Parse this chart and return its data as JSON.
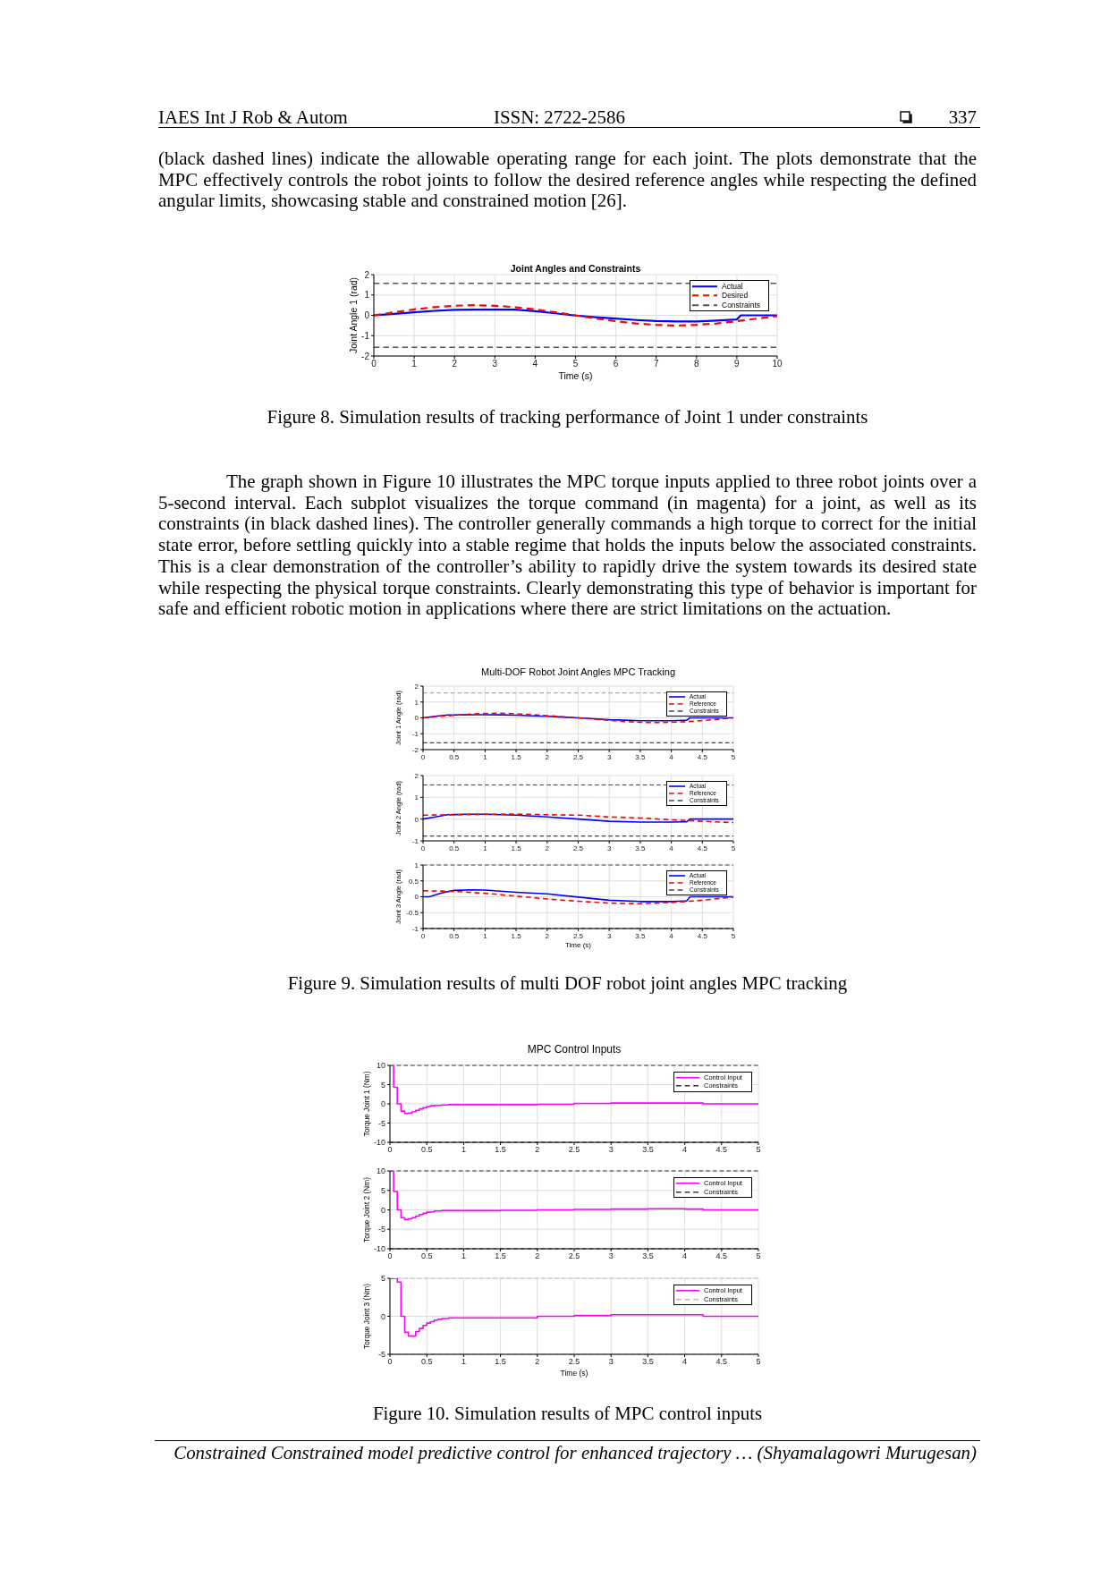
{
  "chart_data": [
    {
      "type": "other",
      "annotations": [
        "IAES Int J Rob & Autom",
        "ISSN: 2722-2586",
        "337"
      ]
    },
    {
      "type": "other",
      "annotations": [
        "(black dashed lines) indicate the allowable operating range for each joint. The plots demonstrate that the MPC effectively controls the robot joints to follow the desired reference angles while respecting the defined angular limits, showcasing stable and constrained motion [26]."
      ]
    },
    {
      "type": "line",
      "title": "Joint Angles and Constraints",
      "xlabel": "Time (s)",
      "ylabel": "Joint Angle 1 (rad)",
      "xlim": [
        0,
        10
      ],
      "xticks": [
        0,
        1,
        2,
        3,
        4,
        5,
        6,
        7,
        8,
        9,
        10
      ],
      "ylim": [
        -2,
        2
      ],
      "yticks": [
        -2,
        -1,
        0,
        1,
        2
      ],
      "grid": true,
      "legend": "top right",
      "series": [
        {
          "name": "Actual",
          "color": "#0000ff",
          "line_style": "solid",
          "x": [
            0,
            0.5,
            1,
            1.5,
            2,
            2.5,
            3,
            3.5,
            4,
            4.5,
            5,
            5.5,
            6,
            6.5,
            7,
            7.5,
            8,
            8.5,
            9,
            9.1,
            9.5,
            10
          ],
          "values": [
            0,
            0.07,
            0.15,
            0.22,
            0.27,
            0.28,
            0.28,
            0.28,
            0.2,
            0.1,
            -0.01,
            -0.09,
            -0.16,
            -0.23,
            -0.28,
            -0.3,
            -0.3,
            -0.26,
            -0.2,
            0,
            0,
            0
          ]
        },
        {
          "name": "Desired",
          "color": "#ff0000",
          "line_style": "dashed",
          "x": [
            0,
            0.5,
            1,
            1.5,
            2,
            2.5,
            3,
            3.5,
            4,
            4.5,
            5,
            5.5,
            6,
            6.5,
            7,
            7.5,
            8,
            8.5,
            9,
            9.5,
            10
          ],
          "values": [
            0,
            0.15,
            0.29,
            0.4,
            0.47,
            0.5,
            0.47,
            0.4,
            0.29,
            0.15,
            0,
            -0.15,
            -0.29,
            -0.4,
            -0.47,
            -0.5,
            -0.47,
            -0.4,
            -0.29,
            -0.16,
            -0.04
          ]
        }
      ],
      "ref_lines": [
        {
          "axis": "y",
          "value": 1.57,
          "label": "Constraints",
          "color": "#555555",
          "line_style": "dashed"
        },
        {
          "axis": "y",
          "value": -1.57,
          "color": "#555555",
          "line_style": "dashed"
        }
      ],
      "annotations": [
        "Figure 8. Simulation results of tracking performance of Joint 1 under constraints"
      ]
    },
    {
      "type": "other",
      "annotations": [
        "The graph shown in Figure 10 illustrates the MPC torque inputs applied to three robot joints over a 5-second interval. Each subplot visualizes the torque command (in magenta) for a joint, as well as its constraints (in black dashed lines). The controller generally commands a high torque to correct for the initial state error, before settling quickly into a stable regime that holds the inputs below the associated constraints. This is a clear demonstration of the controller’s ability to rapidly drive the system towards its desired state while respecting the physical torque constraints. Clearly demonstrating this type of behavior is important for safe and efficient robotic motion in applications where there are strict limitations on the actuation."
      ]
    },
    {
      "type": "line",
      "title": "Multi-DOF Robot Joint Angles MPC Tracking",
      "ylabel": "Joint 1 Angle (rad)",
      "xlim": [
        0,
        5
      ],
      "xticks": [
        0,
        0.5,
        1,
        1.5,
        2,
        2.5,
        3,
        3.5,
        4,
        4.5,
        5
      ],
      "ylim": [
        -2,
        2
      ],
      "yticks": [
        -2,
        -1,
        0,
        1,
        2
      ],
      "grid": true,
      "legend": "top right",
      "series": [
        {
          "name": "Actual",
          "color": "#0000ff",
          "line_style": "solid",
          "x": [
            0,
            0.2,
            0.4,
            0.6,
            0.8,
            1,
            1.25,
            1.5,
            1.75,
            2,
            2.25,
            2.5,
            2.75,
            3,
            3.25,
            3.5,
            3.75,
            4,
            4.25,
            4.3,
            4.65,
            5
          ],
          "values": [
            0,
            0.1,
            0.18,
            0.19,
            0.2,
            0.2,
            0.19,
            0.17,
            0.13,
            0.1,
            0.05,
            0,
            -0.06,
            -0.12,
            -0.15,
            -0.18,
            -0.18,
            -0.18,
            -0.15,
            0,
            0,
            0
          ]
        },
        {
          "name": "Reference",
          "color": "#ff0000",
          "line_style": "dashed",
          "x": [
            0,
            0.25,
            0.5,
            0.75,
            1,
            1.25,
            1.5,
            1.75,
            2,
            2.25,
            2.5,
            2.75,
            3,
            3.25,
            3.5,
            3.75,
            4,
            4.25,
            4.5,
            4.75,
            5
          ],
          "values": [
            0,
            0.09,
            0.16,
            0.23,
            0.28,
            0.29,
            0.26,
            0.2,
            0.14,
            0.07,
            0,
            -0.08,
            -0.16,
            -0.23,
            -0.28,
            -0.3,
            -0.28,
            -0.24,
            -0.17,
            -0.09,
            0
          ]
        }
      ],
      "ref_lines": [
        {
          "axis": "y",
          "value": 1.57,
          "color": "#aaaaaa",
          "line_style": "dashed"
        },
        {
          "axis": "y",
          "value": -1.57,
          "label": "Constraints",
          "color": "#444444",
          "line_style": "dashed"
        }
      ]
    },
    {
      "type": "line",
      "ylabel": "Joint 2 Angle (rad)",
      "xlim": [
        0,
        5
      ],
      "xticks": [
        0,
        0.5,
        1,
        1.5,
        2,
        2.5,
        3,
        3.5,
        4,
        4.5,
        5
      ],
      "ylim": [
        -1,
        2
      ],
      "yticks": [
        -1,
        0,
        1,
        2
      ],
      "grid": true,
      "legend": "top right",
      "series": [
        {
          "name": "Actual",
          "color": "#0000ff",
          "line_style": "solid",
          "x": [
            0,
            0.2,
            0.4,
            0.7,
            1,
            1.5,
            2,
            2.5,
            3,
            3.5,
            4,
            4.25,
            4.3,
            5
          ],
          "values": [
            0,
            0.1,
            0.2,
            0.22,
            0.22,
            0.18,
            0.1,
            0,
            -0.1,
            -0.14,
            -0.14,
            -0.12,
            0,
            0
          ]
        },
        {
          "name": "Reference",
          "color": "#ff0000",
          "line_style": "dashed",
          "x": [
            0,
            0.5,
            1,
            1.5,
            2,
            2.5,
            3,
            3.5,
            4,
            4.5,
            5
          ],
          "values": [
            0.18,
            0.2,
            0.22,
            0.23,
            0.2,
            0.18,
            0.1,
            0.05,
            -0.03,
            -0.1,
            -0.16
          ]
        }
      ],
      "ref_lines": [
        {
          "axis": "y",
          "value": 1.57,
          "label": "Constraints",
          "color": "#444444",
          "line_style": "dashed"
        },
        {
          "axis": "y",
          "value": -0.78,
          "color": "#444444",
          "line_style": "dashed"
        }
      ]
    },
    {
      "type": "line",
      "xlabel": "Time (s)",
      "ylabel": "Joint 3 Angle (rad)",
      "xlim": [
        0,
        5
      ],
      "xticks": [
        0,
        0.5,
        1,
        1.5,
        2,
        2.5,
        3,
        3.5,
        4,
        4.5,
        5
      ],
      "ylim": [
        -1,
        1
      ],
      "yticks": [
        -1,
        -0.5,
        0,
        0.5,
        1
      ],
      "grid": true,
      "legend": "top right",
      "series": [
        {
          "name": "Actual",
          "color": "#0000ff",
          "line_style": "solid",
          "x": [
            0,
            0.1,
            0.3,
            0.5,
            0.8,
            1,
            1.5,
            2,
            2.5,
            3,
            3.5,
            4,
            4.25,
            4.3,
            5
          ],
          "values": [
            0,
            0,
            0.12,
            0.2,
            0.22,
            0.21,
            0.14,
            0.09,
            -0.01,
            -0.11,
            -0.15,
            -0.15,
            -0.13,
            0,
            0
          ]
        },
        {
          "name": "Reference",
          "color": "#ff0000",
          "line_style": "dashed",
          "x": [
            0,
            0.5,
            1,
            1.5,
            2,
            2.5,
            3,
            3.5,
            4,
            4.3,
            4.5,
            5
          ],
          "values": [
            0.19,
            0.17,
            0.11,
            0.02,
            -0.07,
            -0.14,
            -0.2,
            -0.22,
            -0.18,
            -0.14,
            -0.11,
            -0.01
          ]
        }
      ],
      "ref_lines": [
        {
          "axis": "y",
          "value": 1,
          "label": "Constraints",
          "color": "#444444",
          "line_style": "dashed"
        },
        {
          "axis": "y",
          "value": -1,
          "color": "#444444",
          "line_style": "dashed"
        }
      ],
      "annotations": [
        "Figure 9. Simulation results of multi DOF robot joint angles MPC tracking"
      ]
    },
    {
      "type": "step",
      "title": "MPC Control Inputs",
      "ylabel": "Torque Joint 1 (Nm)",
      "xlim": [
        0,
        5
      ],
      "xticks": [
        0,
        0.5,
        1,
        1.5,
        2,
        2.5,
        3,
        3.5,
        4,
        4.5,
        5
      ],
      "ylim": [
        -10,
        10
      ],
      "yticks": [
        -10,
        -5,
        0,
        5,
        10
      ],
      "grid": true,
      "legend": "top right",
      "series": [
        {
          "name": "Control Input",
          "color": "#ff00ff",
          "line_style": "solid",
          "x": [
            0,
            0.05,
            0.1,
            0.15,
            0.2,
            0.25,
            0.3,
            0.35,
            0.4,
            0.45,
            0.5,
            0.55,
            0.6,
            0.7,
            0.8,
            1,
            1.5,
            2,
            2.5,
            3,
            3.5,
            4,
            4.25,
            5
          ],
          "values": [
            10,
            4.3,
            0,
            -1.9,
            -2.5,
            -2.4,
            -2.1,
            -1.7,
            -1.3,
            -1,
            -0.7,
            -0.5,
            -0.4,
            -0.3,
            -0.2,
            -0.2,
            -0.2,
            -0.1,
            0.1,
            0.2,
            0.2,
            0.2,
            0,
            0
          ]
        }
      ],
      "ref_lines": [
        {
          "axis": "y",
          "value": 10,
          "label": "Constraints",
          "color": "#333333",
          "line_style": "dashed"
        },
        {
          "axis": "y",
          "value": -10,
          "color": "#333333",
          "line_style": "dashed"
        }
      ]
    },
    {
      "type": "step",
      "ylabel": "Torque Joint 2 (Nm)",
      "xlim": [
        0,
        5
      ],
      "xticks": [
        0,
        0.5,
        1,
        1.5,
        2,
        2.5,
        3,
        3.5,
        4,
        4.5,
        5
      ],
      "ylim": [
        -10,
        10
      ],
      "yticks": [
        -10,
        -5,
        0,
        5,
        10
      ],
      "grid": true,
      "legend": "top right",
      "series": [
        {
          "name": "Control Input",
          "color": "#ff00ff",
          "line_style": "solid",
          "x": [
            0,
            0.05,
            0.1,
            0.15,
            0.2,
            0.25,
            0.3,
            0.35,
            0.4,
            0.45,
            0.5,
            0.55,
            0.6,
            0.7,
            0.8,
            1,
            1.5,
            2,
            2.5,
            3,
            3.5,
            4,
            4.25,
            5
          ],
          "values": [
            10,
            4.7,
            0,
            -2,
            -2.5,
            -2.3,
            -2,
            -1.6,
            -1.2,
            -0.9,
            -0.6,
            -0.5,
            -0.3,
            -0.2,
            -0.2,
            -0.2,
            -0.1,
            0,
            0.1,
            0.2,
            0.3,
            0.2,
            0,
            0
          ]
        }
      ],
      "ref_lines": [
        {
          "axis": "y",
          "value": 10,
          "label": "Constraints",
          "color": "#333333",
          "line_style": "dashed"
        },
        {
          "axis": "y",
          "value": -10,
          "color": "#333333",
          "line_style": "dashed"
        }
      ]
    },
    {
      "type": "step",
      "xlabel": "Time (s)",
      "ylabel": "Torque Joint 3 (Nm)",
      "xlim": [
        0,
        5
      ],
      "xticks": [
        0,
        0.5,
        1,
        1.5,
        2,
        2.5,
        3,
        3.5,
        4,
        4.5,
        5
      ],
      "ylim": [
        -5,
        5
      ],
      "yticks": [
        -5,
        0,
        5
      ],
      "grid": true,
      "legend": "top right",
      "series": [
        {
          "name": "Control Input",
          "color": "#ff00ff",
          "line_style": "solid",
          "x": [
            0,
            0.1,
            0.15,
            0.2,
            0.25,
            0.35,
            0.4,
            0.45,
            0.5,
            0.55,
            0.6,
            0.65,
            0.7,
            0.8,
            1,
            1.5,
            2,
            2.5,
            3,
            3.5,
            4,
            4.25,
            5
          ],
          "values": [
            5,
            4.5,
            0,
            -2.1,
            -2.6,
            -2,
            -1.6,
            -1.2,
            -0.9,
            -0.7,
            -0.5,
            -0.4,
            -0.3,
            -0.2,
            -0.2,
            -0.2,
            0,
            0.1,
            0.2,
            0.2,
            0.2,
            0,
            0
          ]
        }
      ],
      "ref_lines": [
        {
          "axis": "y",
          "value": 5,
          "label": "Constraints",
          "color": "#bbbbbb",
          "line_style": "dashed"
        },
        {
          "axis": "y",
          "value": -5,
          "color": "#bbbbbb",
          "line_style": "dashed"
        }
      ],
      "annotations": [
        "Figure 10. Simulation results of MPC control inputs"
      ]
    },
    {
      "type": "other",
      "annotations": [
        "Constrained Constrained model predictive control for enhanced trajectory … (Shyamalagowri Murugesan)"
      ]
    }
  ]
}
